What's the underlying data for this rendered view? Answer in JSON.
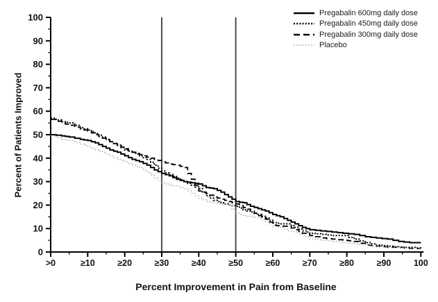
{
  "chart_data": {
    "type": "line",
    "title": "",
    "xlabel": "Percent Improvement in Pain from Baseline",
    "ylabel": "Percent of Patients Improved",
    "xlim": [
      0,
      100
    ],
    "ylim": [
      0,
      100
    ],
    "grid": false,
    "legend_position": "top-right",
    "x_ticks": [
      {
        "value": 0,
        "label": ">0"
      },
      {
        "value": 10,
        "label": "≥10"
      },
      {
        "value": 20,
        "label": "≥20"
      },
      {
        "value": 30,
        "label": "≥30"
      },
      {
        "value": 40,
        "label": "≥40"
      },
      {
        "value": 50,
        "label": "≥50"
      },
      {
        "value": 60,
        "label": "≥60"
      },
      {
        "value": 70,
        "label": "≥70"
      },
      {
        "value": 80,
        "label": "≥80"
      },
      {
        "value": 90,
        "label": "≥90"
      },
      {
        "value": 100,
        "label": "100"
      }
    ],
    "y_ticks": [
      {
        "value": 0,
        "label": "0"
      },
      {
        "value": 10,
        "label": "10"
      },
      {
        "value": 20,
        "label": "20"
      },
      {
        "value": 30,
        "label": "30"
      },
      {
        "value": 40,
        "label": "40"
      },
      {
        "value": 50,
        "label": "50"
      },
      {
        "value": 60,
        "label": "60"
      },
      {
        "value": 70,
        "label": "70"
      },
      {
        "value": 80,
        "label": "80"
      },
      {
        "value": 90,
        "label": "90"
      },
      {
        "value": 100,
        "label": "100"
      }
    ],
    "minor_tick_step": 5,
    "reference_lines_x": [
      30,
      50
    ],
    "series": [
      {
        "name": "Pregabalin 600mg daily dose",
        "style": "solid",
        "color": "#000000",
        "points": [
          [
            0,
            50
          ],
          [
            3,
            49.5
          ],
          [
            5,
            49
          ],
          [
            8,
            48
          ],
          [
            10,
            47.5
          ],
          [
            12,
            46.5
          ],
          [
            14,
            45
          ],
          [
            16,
            43.5
          ],
          [
            18,
            42.5
          ],
          [
            20,
            41
          ],
          [
            22,
            39.5
          ],
          [
            24,
            38.5
          ],
          [
            26,
            37
          ],
          [
            28,
            35
          ],
          [
            30,
            33.5
          ],
          [
            32,
            32.5
          ],
          [
            34,
            31
          ],
          [
            36,
            30
          ],
          [
            38,
            29.5
          ],
          [
            40,
            29
          ],
          [
            42,
            27.5
          ],
          [
            44,
            27
          ],
          [
            46,
            25.5
          ],
          [
            48,
            23.5
          ],
          [
            50,
            21.5
          ],
          [
            52,
            21
          ],
          [
            54,
            19.5
          ],
          [
            56,
            18.5
          ],
          [
            58,
            17.5
          ],
          [
            60,
            16
          ],
          [
            62,
            15
          ],
          [
            64,
            13.5
          ],
          [
            66,
            12
          ],
          [
            68,
            10.5
          ],
          [
            70,
            9.5
          ],
          [
            73,
            9
          ],
          [
            76,
            8.5
          ],
          [
            79,
            8
          ],
          [
            82,
            7.5
          ],
          [
            85,
            6.5
          ],
          [
            88,
            6
          ],
          [
            91,
            5.5
          ],
          [
            94,
            4.5
          ],
          [
            97,
            4
          ],
          [
            100,
            4
          ]
        ]
      },
      {
        "name": "Pregabalin 450mg daily dose",
        "style": "dense-dotted",
        "color": "#000000",
        "points": [
          [
            0,
            57
          ],
          [
            3,
            55.5
          ],
          [
            5,
            55
          ],
          [
            8,
            53
          ],
          [
            10,
            52
          ],
          [
            12,
            50.5
          ],
          [
            14,
            49
          ],
          [
            16,
            47
          ],
          [
            18,
            45.5
          ],
          [
            20,
            43.5
          ],
          [
            22,
            42.5
          ],
          [
            24,
            41
          ],
          [
            26,
            39.5
          ],
          [
            28,
            37
          ],
          [
            30,
            34.5
          ],
          [
            32,
            33
          ],
          [
            34,
            31.5
          ],
          [
            36,
            30
          ],
          [
            38,
            28.5
          ],
          [
            40,
            27
          ],
          [
            42,
            24
          ],
          [
            44,
            22
          ],
          [
            46,
            21
          ],
          [
            48,
            20
          ],
          [
            50,
            19.5
          ],
          [
            52,
            18
          ],
          [
            54,
            17
          ],
          [
            56,
            16
          ],
          [
            58,
            14.5
          ],
          [
            60,
            12.5
          ],
          [
            62,
            12
          ],
          [
            64,
            12
          ],
          [
            66,
            10.5
          ],
          [
            68,
            9
          ],
          [
            70,
            8
          ],
          [
            73,
            7.5
          ],
          [
            76,
            7
          ],
          [
            79,
            7
          ],
          [
            82,
            5.5
          ],
          [
            85,
            4
          ],
          [
            88,
            3
          ],
          [
            91,
            2.5
          ],
          [
            94,
            2
          ],
          [
            97,
            2
          ],
          [
            100,
            1.5
          ]
        ]
      },
      {
        "name": "Pregabalin 300mg daily dose",
        "style": "dashed",
        "color": "#000000",
        "points": [
          [
            0,
            56.5
          ],
          [
            3,
            55
          ],
          [
            5,
            54
          ],
          [
            8,
            52.5
          ],
          [
            10,
            51.5
          ],
          [
            12,
            50
          ],
          [
            14,
            48.5
          ],
          [
            16,
            47
          ],
          [
            18,
            45.5
          ],
          [
            20,
            44
          ],
          [
            22,
            42.5
          ],
          [
            24,
            41.5
          ],
          [
            26,
            40.5
          ],
          [
            28,
            39.5
          ],
          [
            30,
            38.5
          ],
          [
            32,
            37.5
          ],
          [
            34,
            37
          ],
          [
            36,
            36
          ],
          [
            38,
            31
          ],
          [
            40,
            26
          ],
          [
            42,
            25
          ],
          [
            44,
            23.5
          ],
          [
            46,
            22.5
          ],
          [
            48,
            21.5
          ],
          [
            50,
            20.5
          ],
          [
            52,
            19
          ],
          [
            54,
            17.5
          ],
          [
            56,
            15.5
          ],
          [
            58,
            14
          ],
          [
            60,
            11.5
          ],
          [
            62,
            11
          ],
          [
            64,
            11
          ],
          [
            66,
            9.5
          ],
          [
            68,
            8
          ],
          [
            70,
            7
          ],
          [
            73,
            6
          ],
          [
            76,
            5.5
          ],
          [
            79,
            5
          ],
          [
            82,
            4.5
          ],
          [
            85,
            3
          ],
          [
            88,
            2.5
          ],
          [
            91,
            2
          ],
          [
            94,
            2
          ],
          [
            97,
            1.5
          ],
          [
            100,
            1.5
          ]
        ]
      },
      {
        "name": "Placebo",
        "style": "fine-dotted",
        "color": "#a3a3a3",
        "points": [
          [
            0,
            49.5
          ],
          [
            3,
            48
          ],
          [
            5,
            47.5
          ],
          [
            8,
            46
          ],
          [
            10,
            45
          ],
          [
            12,
            43.5
          ],
          [
            14,
            42.5
          ],
          [
            16,
            41
          ],
          [
            18,
            39.5
          ],
          [
            20,
            38.5
          ],
          [
            22,
            37
          ],
          [
            24,
            36
          ],
          [
            26,
            34
          ],
          [
            28,
            31.5
          ],
          [
            30,
            29.5
          ],
          [
            32,
            28.5
          ],
          [
            34,
            28
          ],
          [
            36,
            27
          ],
          [
            38,
            25
          ],
          [
            40,
            23
          ],
          [
            42,
            21.5
          ],
          [
            44,
            21
          ],
          [
            46,
            20.5
          ],
          [
            48,
            20
          ],
          [
            50,
            16.5
          ],
          [
            52,
            15.5
          ],
          [
            54,
            15
          ],
          [
            56,
            14.5
          ],
          [
            58,
            13
          ],
          [
            60,
            11
          ],
          [
            62,
            10.5
          ],
          [
            64,
            9
          ],
          [
            66,
            8.5
          ],
          [
            68,
            7
          ],
          [
            70,
            5.5
          ],
          [
            73,
            5
          ],
          [
            76,
            4.5
          ],
          [
            79,
            4
          ],
          [
            82,
            3.5
          ],
          [
            85,
            3
          ],
          [
            88,
            2.5
          ],
          [
            91,
            2
          ],
          [
            94,
            2
          ],
          [
            97,
            1.5
          ],
          [
            100,
            1.5
          ]
        ]
      }
    ]
  },
  "colors": {
    "background": "#ffffff",
    "axis": "#000000",
    "tick_text": "#111111",
    "reference_line": "#4d4d4d",
    "placebo_line": "#a3a3a3"
  }
}
